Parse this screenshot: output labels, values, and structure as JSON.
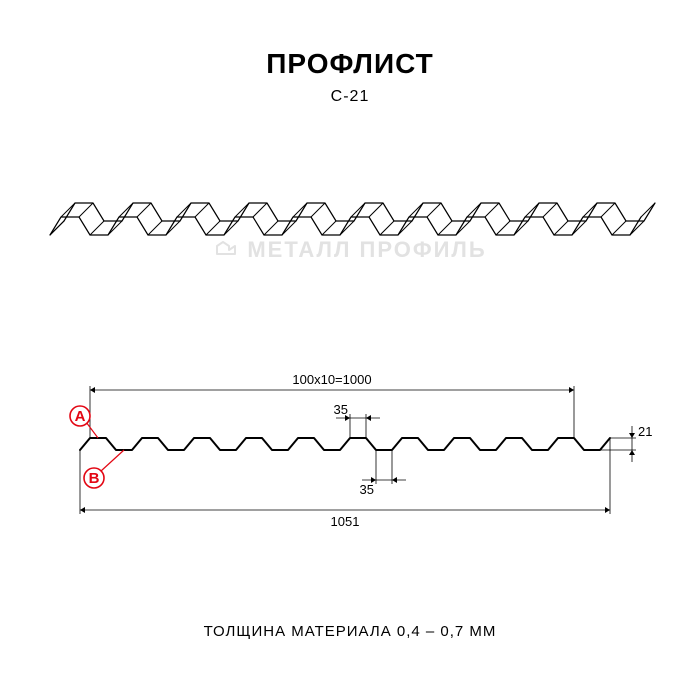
{
  "title": "ПРОФЛИСТ",
  "subtitle": "С-21",
  "watermark": "МЕТАЛЛ ПРОФИЛЬ",
  "footer": "ТОЛЩИНА МАТЕРИАЛА 0,4 – 0,7 ММ",
  "iso": {
    "waves": 10,
    "stroke": "#000000",
    "stroke_width": 1.2,
    "depth_dx": 14,
    "depth_dy": -14,
    "amplitude": 18,
    "period": 58,
    "top_flat": 18,
    "bot_flat": 18,
    "slope": 11
  },
  "section": {
    "waves": 10,
    "stroke": "#000000",
    "stroke_width": 2,
    "thin_width": 0.8,
    "amplitude": 12,
    "period": 52,
    "top_flat": 16,
    "bot_flat": 16,
    "slope": 10,
    "dim_top": "100х10=1000",
    "dim_bottom": "1051",
    "dim_35a": "35",
    "dim_35b": "35",
    "dim_21": "21",
    "marker_a": "A",
    "marker_b": "B",
    "marker_color": "#e30613",
    "dim_color": "#000000"
  }
}
